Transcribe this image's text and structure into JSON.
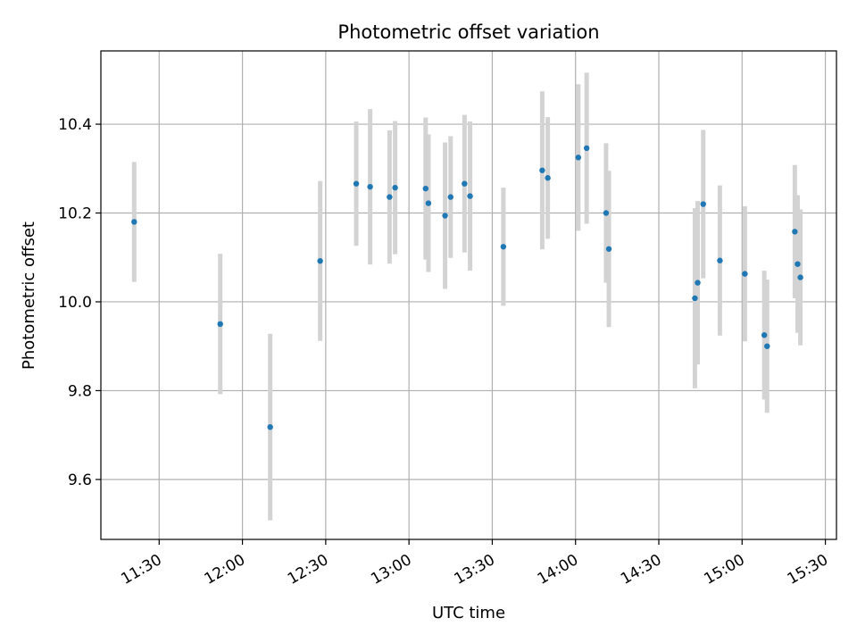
{
  "chart_data": {
    "type": "scatter",
    "title": "Photometric offset variation",
    "xlabel": "UTC time",
    "ylabel": "Photometric offset",
    "x_axis_format": "time HH:MM",
    "xlim": [
      "11:09",
      "15:34"
    ],
    "ylim": [
      9.465,
      10.565
    ],
    "x_ticks": [
      "11:30",
      "12:00",
      "12:30",
      "13:00",
      "13:30",
      "14:00",
      "14:30",
      "15:00",
      "15:30"
    ],
    "y_ticks": [
      9.6,
      9.8,
      10.0,
      10.2,
      10.4
    ],
    "grid": true,
    "legend": "none",
    "marker_color": "#1f77b4",
    "errorbar_color": "#d3d3d3",
    "series": [
      {
        "points": [
          {
            "x": "11:21",
            "y": 10.18,
            "err": 0.135
          },
          {
            "x": "11:52",
            "y": 9.95,
            "err": 0.158
          },
          {
            "x": "12:10",
            "y": 9.718,
            "err": 0.21
          },
          {
            "x": "12:28",
            "y": 10.092,
            "err": 0.18
          },
          {
            "x": "12:41",
            "y": 10.266,
            "err": 0.14
          },
          {
            "x": "12:46",
            "y": 10.259,
            "err": 0.175
          },
          {
            "x": "12:53",
            "y": 10.236,
            "err": 0.15
          },
          {
            "x": "12:55",
            "y": 10.257,
            "err": 0.15
          },
          {
            "x": "13:06",
            "y": 10.255,
            "err": 0.16
          },
          {
            "x": "13:07",
            "y": 10.222,
            "err": 0.155
          },
          {
            "x": "13:13",
            "y": 10.194,
            "err": 0.165
          },
          {
            "x": "13:15",
            "y": 10.236,
            "err": 0.137
          },
          {
            "x": "13:20",
            "y": 10.266,
            "err": 0.155
          },
          {
            "x": "13:22",
            "y": 10.238,
            "err": 0.168
          },
          {
            "x": "13:34",
            "y": 10.124,
            "err": 0.133
          },
          {
            "x": "13:48",
            "y": 10.296,
            "err": 0.178
          },
          {
            "x": "13:50",
            "y": 10.279,
            "err": 0.137
          },
          {
            "x": "14:01",
            "y": 10.325,
            "err": 0.165
          },
          {
            "x": "14:04",
            "y": 10.346,
            "err": 0.17
          },
          {
            "x": "14:11",
            "y": 10.2,
            "err": 0.157
          },
          {
            "x": "14:12",
            "y": 10.119,
            "err": 0.176
          },
          {
            "x": "14:43",
            "y": 10.008,
            "err": 0.203
          },
          {
            "x": "14:44",
            "y": 10.043,
            "err": 0.184
          },
          {
            "x": "14:46",
            "y": 10.22,
            "err": 0.167
          },
          {
            "x": "14:52",
            "y": 10.093,
            "err": 0.169
          },
          {
            "x": "15:01",
            "y": 10.063,
            "err": 0.152
          },
          {
            "x": "15:08",
            "y": 9.925,
            "err": 0.145
          },
          {
            "x": "15:09",
            "y": 9.9,
            "err": 0.15
          },
          {
            "x": "15:19",
            "y": 10.158,
            "err": 0.15
          },
          {
            "x": "15:20",
            "y": 10.085,
            "err": 0.155
          },
          {
            "x": "15:21",
            "y": 10.055,
            "err": 0.153
          }
        ]
      }
    ]
  }
}
